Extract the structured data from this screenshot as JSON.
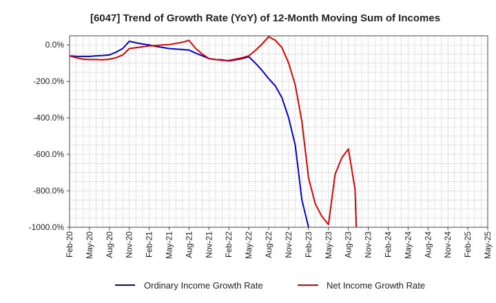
{
  "chart_data": {
    "type": "line",
    "title": "[6047]  Trend of Growth Rate (YoY) of 12-Month Moving Sum of Incomes",
    "xlabel": "",
    "ylabel": "",
    "x": [
      "2020-02",
      "2020-03",
      "2020-04",
      "2020-05",
      "2020-06",
      "2020-07",
      "2020-08",
      "2020-09",
      "2020-10",
      "2020-11",
      "2020-12",
      "2021-01",
      "2021-02",
      "2021-03",
      "2021-04",
      "2021-05",
      "2021-06",
      "2021-07",
      "2021-08",
      "2021-09",
      "2021-10",
      "2021-11",
      "2021-12",
      "2022-01",
      "2022-02",
      "2022-03",
      "2022-04",
      "2022-05",
      "2022-06",
      "2022-07",
      "2022-08",
      "2022-09",
      "2022-10",
      "2022-11",
      "2022-12",
      "2023-01",
      "2023-02",
      "2023-03",
      "2023-04",
      "2023-05",
      "2023-06",
      "2023-07",
      "2023-08",
      "2023-09"
    ],
    "x_ticks": [
      "Feb-20",
      "May-20",
      "Aug-20",
      "Nov-20",
      "Feb-21",
      "May-21",
      "Aug-21",
      "Nov-21",
      "Feb-22",
      "May-22",
      "Aug-22",
      "Nov-22",
      "Feb-23",
      "May-23",
      "Aug-23",
      "Nov-23",
      "Feb-24",
      "May-24",
      "Aug-24",
      "Nov-24",
      "Feb-25",
      "May-25"
    ],
    "y_ticks": [
      "0.0%",
      "-200.0%",
      "-400.0%",
      "-600.0%",
      "-800.0%",
      "-1000.0%"
    ],
    "y_tick_values": [
      0,
      -200,
      -400,
      -600,
      -800,
      -1000
    ],
    "ylim": [
      -1000,
      50
    ],
    "x_range": [
      "2020-02",
      "2025-05"
    ],
    "grid": true,
    "legend_position": "bottom",
    "series": [
      {
        "name": "Ordinary Income Growth Rate",
        "color": "#0000cc",
        "values": [
          -60,
          -62,
          -63,
          -63,
          -60,
          -58,
          -55,
          -40,
          -20,
          20,
          12,
          5,
          0,
          -8,
          -14,
          -20,
          -23,
          -25,
          -28,
          -45,
          -60,
          -75,
          -80,
          -82,
          -88,
          -82,
          -75,
          -65,
          -100,
          -140,
          -185,
          -225,
          -290,
          -400,
          -550,
          -850,
          -1000,
          null,
          null,
          null,
          null,
          null,
          null,
          null
        ]
      },
      {
        "name": "Net Income Growth Rate",
        "color": "#dd0000",
        "values": [
          -60,
          -70,
          -78,
          -80,
          -80,
          -82,
          -78,
          -70,
          -55,
          -20,
          -15,
          -10,
          -5,
          -3,
          0,
          2,
          8,
          15,
          25,
          -20,
          -50,
          -75,
          -80,
          -85,
          -85,
          -78,
          -70,
          -60,
          -30,
          5,
          45,
          25,
          -15,
          -100,
          -220,
          -420,
          -730,
          -870,
          -940,
          -985,
          -710,
          -620,
          -570,
          -790
        ]
      }
    ],
    "net_income_drop_end": -1000
  }
}
